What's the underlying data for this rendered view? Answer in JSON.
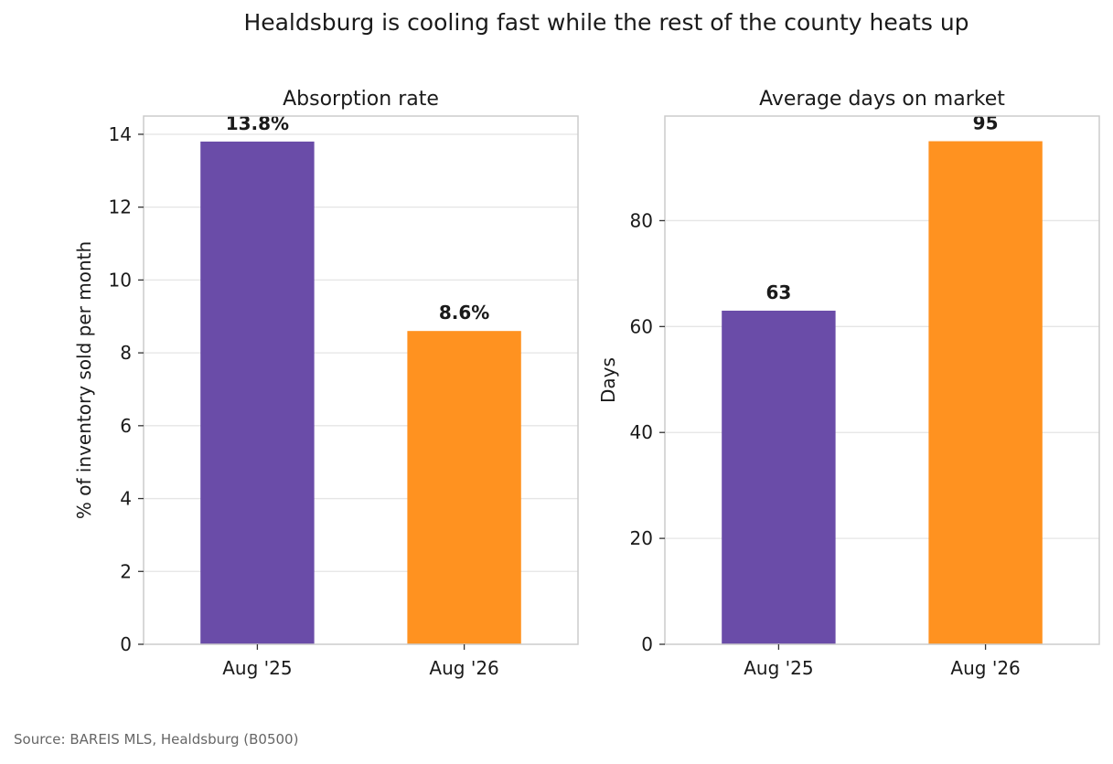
{
  "figure": {
    "title": "Healdsburg is cooling fast while the rest of the county heats up",
    "source": "Source: BAREIS MLS, Healdsburg (B0500)"
  },
  "colors": {
    "aug25": "#6A4CA8",
    "aug26": "#FF9220",
    "grid": "#e5e5e5",
    "frame": "#cccccc"
  },
  "chart_data": [
    {
      "type": "bar",
      "title": "Absorption rate",
      "categories": [
        "Aug '25",
        "Aug '26"
      ],
      "values": [
        13.8,
        8.6
      ],
      "value_labels": [
        "13.8%",
        "8.6%"
      ],
      "xlabel": "",
      "ylabel": "% of inventory sold per month",
      "ylim": [
        0,
        14.5
      ],
      "yticks": [
        0,
        2,
        4,
        6,
        8,
        10,
        12,
        14
      ],
      "grid": true,
      "legend": "none"
    },
    {
      "type": "bar",
      "title": "Average days on market",
      "categories": [
        "Aug '25",
        "Aug '26"
      ],
      "values": [
        63,
        95
      ],
      "value_labels": [
        "63",
        "95"
      ],
      "xlabel": "",
      "ylabel": "Days",
      "ylim": [
        0,
        99.75
      ],
      "yticks": [
        0,
        20,
        40,
        60,
        80
      ],
      "grid": true,
      "legend": "none"
    }
  ]
}
